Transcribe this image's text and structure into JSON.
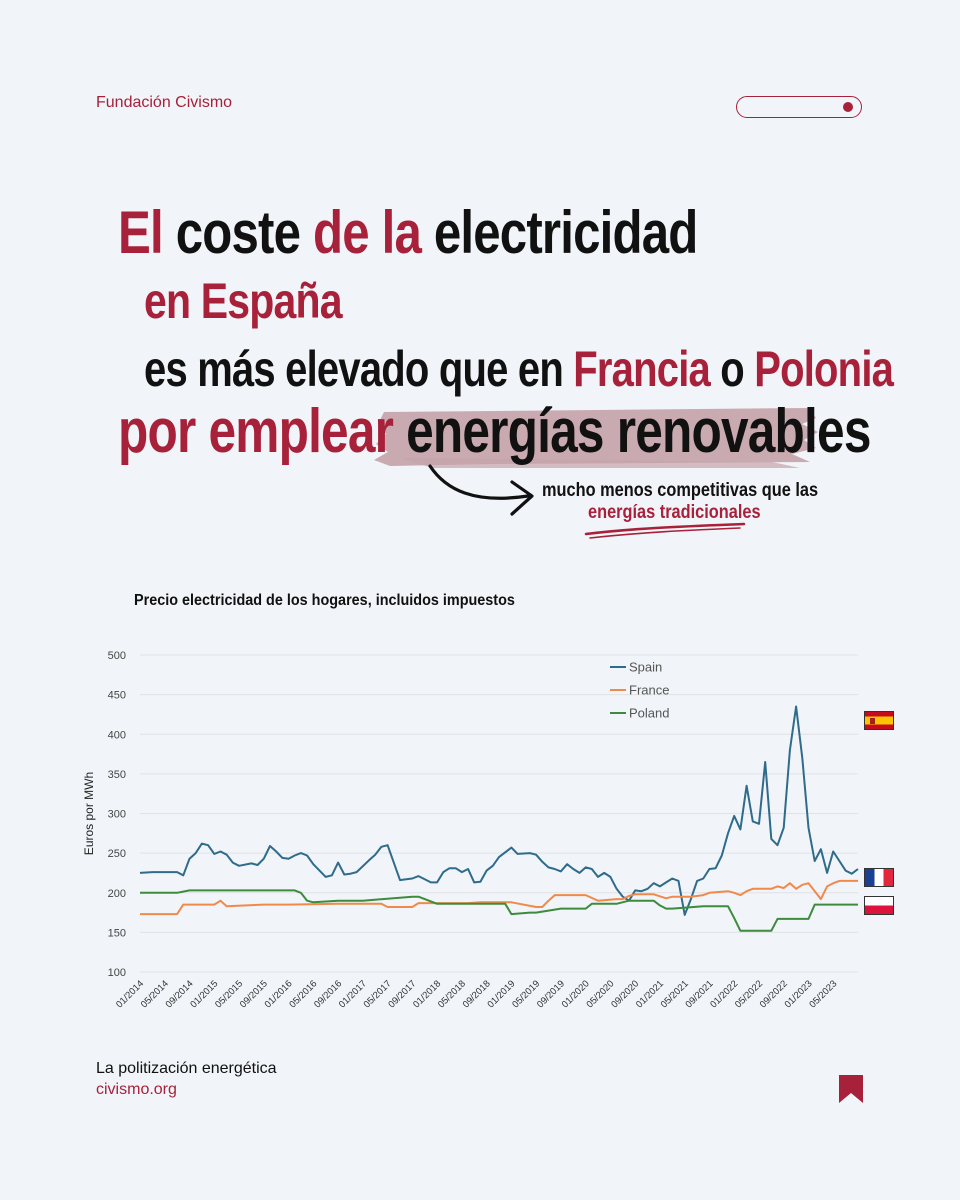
{
  "header": {
    "brand": "Fundación Civismo"
  },
  "headline": {
    "line1": [
      {
        "text": "El",
        "color": "red"
      },
      {
        "text": " coste ",
        "color": "black"
      },
      {
        "text": "de la",
        "color": "red"
      },
      {
        "text": " electricidad",
        "color": "black"
      }
    ],
    "line2": [
      {
        "text": "en España",
        "color": "red"
      }
    ],
    "line3": [
      {
        "text": "es más elevado que en ",
        "color": "black"
      },
      {
        "text": "Francia",
        "color": "red"
      },
      {
        "text": " o ",
        "color": "black"
      },
      {
        "text": "Polonia",
        "color": "red"
      }
    ],
    "line4": [
      {
        "text": "por emplear ",
        "color": "red"
      },
      {
        "text": "energías renovables",
        "color": "black"
      }
    ],
    "sub_line1": "mucho menos competitivas que las",
    "sub_line2": "energías tradicionales"
  },
  "colors": {
    "accent": "#a8213a",
    "spain": "#2f6b8a",
    "france": "#f08a4b",
    "poland": "#3d8b3d",
    "brush": "#c5a3aa"
  },
  "chart_data": {
    "type": "line",
    "title": "Precio electricidad de los hogares, incluidos impuestos",
    "xlabel": "",
    "ylabel": "Euros por MWh",
    "ylim": [
      100,
      500
    ],
    "yticks": [
      100,
      150,
      200,
      250,
      300,
      350,
      400,
      450,
      500
    ],
    "xlim": [
      "01/2014",
      "09/2023"
    ],
    "xticks": [
      "01/2014",
      "05/2014",
      "09/2014",
      "01/2015",
      "05/2015",
      "09/2015",
      "01/2016",
      "05/2016",
      "09/2016",
      "01/2017",
      "05/2017",
      "09/2017",
      "01/2018",
      "05/2018",
      "09/2018",
      "01/2019",
      "05/2019",
      "09/2019",
      "01/2020",
      "05/2020",
      "09/2020",
      "01/2021",
      "05/2021",
      "09/2021",
      "01/2022",
      "05/2022",
      "09/2022",
      "01/2023",
      "05/2023"
    ],
    "grid": "horizontal",
    "legend_position": "top-right",
    "series": [
      {
        "name": "Spain",
        "x": [
          "01/2014",
          "03/2014",
          "05/2014",
          "07/2014",
          "08/2014",
          "09/2014",
          "10/2014",
          "11/2014",
          "12/2014",
          "01/2015",
          "02/2015",
          "03/2015",
          "04/2015",
          "05/2015",
          "07/2015",
          "08/2015",
          "09/2015",
          "10/2015",
          "11/2015",
          "12/2015",
          "01/2016",
          "02/2016",
          "03/2016",
          "04/2016",
          "05/2016",
          "06/2016",
          "07/2016",
          "08/2016",
          "09/2016",
          "10/2016",
          "11/2016",
          "12/2016",
          "02/2017",
          "03/2017",
          "04/2017",
          "05/2017",
          "07/2017",
          "08/2017",
          "09/2017",
          "10/2017",
          "12/2017",
          "01/2018",
          "02/2018",
          "03/2018",
          "04/2018",
          "05/2018",
          "06/2018",
          "07/2018",
          "08/2018",
          "09/2018",
          "10/2018",
          "11/2018",
          "01/2019",
          "02/2019",
          "04/2019",
          "05/2019",
          "06/2019",
          "07/2019",
          "08/2019",
          "09/2019",
          "10/2019",
          "11/2019",
          "12/2019",
          "01/2020",
          "02/2020",
          "03/2020",
          "04/2020",
          "05/2020",
          "06/2020",
          "07/2020",
          "08/2020",
          "09/2020",
          "10/2020",
          "11/2020",
          "12/2020",
          "01/2021",
          "02/2021",
          "03/2021",
          "04/2021",
          "05/2021",
          "06/2021",
          "07/2021",
          "08/2021",
          "09/2021",
          "10/2021",
          "11/2021",
          "12/2021",
          "01/2022",
          "02/2022",
          "03/2022",
          "04/2022",
          "05/2022",
          "06/2022",
          "07/2022",
          "08/2022",
          "09/2022",
          "10/2022",
          "11/2022",
          "12/2022",
          "01/2023",
          "02/2023",
          "03/2023",
          "04/2023",
          "05/2023",
          "06/2023",
          "07/2023",
          "08/2023",
          "09/2023"
        ],
        "values": [
          225,
          226,
          226,
          226,
          222,
          243,
          250,
          262,
          260,
          249,
          252,
          248,
          238,
          234,
          237,
          235,
          243,
          259,
          252,
          244,
          243,
          247,
          250,
          247,
          236,
          228,
          220,
          222,
          238,
          223,
          224,
          226,
          241,
          248,
          258,
          260,
          216,
          217,
          218,
          221,
          213,
          213,
          226,
          231,
          231,
          226,
          230,
          213,
          214,
          228,
          234,
          245,
          257,
          249,
          250,
          248,
          239,
          232,
          230,
          227,
          236,
          230,
          225,
          232,
          230,
          220,
          225,
          220,
          205,
          195,
          190,
          203,
          202,
          205,
          212,
          208,
          213,
          218,
          215,
          172,
          192,
          215,
          218,
          230,
          231,
          247,
          275,
          297,
          280,
          335,
          290,
          287,
          365,
          268,
          260,
          282,
          380,
          435,
          370,
          282,
          240,
          255,
          225,
          252,
          240,
          228,
          224,
          230
        ]
      },
      {
        "name": "France",
        "x": [
          "01/2014",
          "07/2014",
          "08/2014",
          "12/2014",
          "01/2015",
          "02/2015",
          "03/2015",
          "09/2015",
          "01/2016",
          "09/2016",
          "01/2017",
          "04/2017",
          "05/2017",
          "09/2017",
          "10/2017",
          "01/2018",
          "06/2018",
          "08/2018",
          "01/2019",
          "05/2019",
          "06/2019",
          "07/2019",
          "08/2019",
          "12/2019",
          "01/2020",
          "03/2020",
          "06/2020",
          "07/2020",
          "08/2020",
          "09/2020",
          "12/2020",
          "02/2021",
          "03/2021",
          "06/2021",
          "08/2021",
          "09/2021",
          "12/2021",
          "01/2022",
          "02/2022",
          "03/2022",
          "04/2022",
          "06/2022",
          "07/2022",
          "08/2022",
          "09/2022",
          "10/2022",
          "11/2022",
          "12/2022",
          "01/2023",
          "03/2023",
          "04/2023",
          "05/2023",
          "06/2023",
          "08/2023",
          "09/2023"
        ],
        "values": [
          173,
          173,
          185,
          185,
          185,
          190,
          183,
          185,
          185,
          186,
          186,
          186,
          182,
          182,
          187,
          187,
          187,
          188,
          188,
          182,
          182,
          190,
          197,
          197,
          197,
          190,
          192,
          192,
          196,
          198,
          198,
          193,
          195,
          195,
          197,
          200,
          202,
          200,
          197,
          202,
          205,
          205,
          205,
          208,
          206,
          212,
          205,
          210,
          212,
          192,
          208,
          212,
          215,
          215,
          215
        ]
      },
      {
        "name": "Poland",
        "x": [
          "01/2014",
          "07/2014",
          "09/2014",
          "02/2016",
          "03/2016",
          "04/2016",
          "05/2016",
          "09/2016",
          "01/2017",
          "09/2017",
          "10/2017",
          "01/2018",
          "06/2018",
          "09/2018",
          "12/2018",
          "01/2019",
          "04/2019",
          "05/2019",
          "09/2019",
          "01/2020",
          "02/2020",
          "06/2020",
          "08/2020",
          "12/2020",
          "01/2021",
          "02/2021",
          "03/2021",
          "08/2021",
          "12/2021",
          "01/2022",
          "02/2022",
          "03/2022",
          "06/2022",
          "07/2022",
          "08/2022",
          "12/2022",
          "01/2023",
          "02/2023",
          "09/2023"
        ],
        "values": [
          200,
          200,
          203,
          203,
          200,
          190,
          188,
          190,
          190,
          195,
          195,
          186,
          186,
          186,
          186,
          173,
          175,
          175,
          180,
          180,
          186,
          186,
          190,
          190,
          184,
          180,
          180,
          183,
          183,
          168,
          152,
          152,
          152,
          152,
          167,
          167,
          167,
          185,
          185
        ]
      }
    ]
  }
}
